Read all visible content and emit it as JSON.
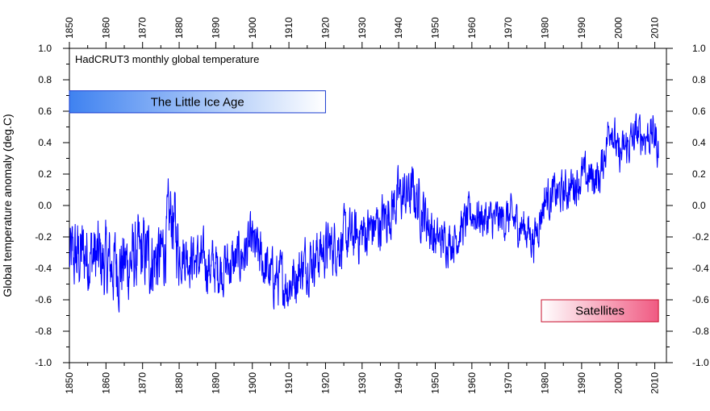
{
  "chart_data": {
    "type": "line",
    "title": "HadCRUT3 monthly global temperature",
    "ylabel": "Global temperature anomaly (deg.C)",
    "xlim": [
      1850,
      2012
    ],
    "ylim": [
      -1.0,
      1.0
    ],
    "x_ticks": [
      "1850",
      "1860",
      "1870",
      "1880",
      "1890",
      "1900",
      "1910",
      "1920",
      "1930",
      "1940",
      "1950",
      "1960",
      "1970",
      "1980",
      "1990",
      "2000",
      "2010"
    ],
    "y_ticks": [
      "1.0",
      "0.8",
      "0.6",
      "0.4",
      "0.2",
      "0.0",
      "-0.2",
      "-0.4",
      "-0.6",
      "-0.8",
      "-1.0"
    ],
    "y_tick_values": [
      1.0,
      0.8,
      0.6,
      0.4,
      0.2,
      0.0,
      -0.2,
      -0.4,
      -0.6,
      -0.8,
      -1.0
    ],
    "line_color": "#0000ff",
    "series_trend": {
      "x": [
        1850,
        1855,
        1860,
        1865,
        1870,
        1875,
        1878,
        1880,
        1885,
        1890,
        1895,
        1900,
        1905,
        1910,
        1915,
        1920,
        1925,
        1930,
        1935,
        1940,
        1944,
        1948,
        1950,
        1955,
        1960,
        1965,
        1970,
        1975,
        1977,
        1980,
        1985,
        1990,
        1995,
        1998,
        2000,
        2005,
        2010,
        2011
      ],
      "y": [
        -0.35,
        -0.3,
        -0.38,
        -0.38,
        -0.32,
        -0.35,
        -0.05,
        -0.28,
        -0.35,
        -0.4,
        -0.37,
        -0.25,
        -0.45,
        -0.5,
        -0.35,
        -0.28,
        -0.22,
        -0.18,
        -0.12,
        0.05,
        0.08,
        -0.1,
        -0.22,
        -0.22,
        -0.05,
        -0.1,
        -0.08,
        -0.15,
        -0.22,
        0.05,
        0.08,
        0.18,
        0.18,
        0.55,
        0.3,
        0.45,
        0.45,
        0.35
      ]
    },
    "annotations": [
      {
        "label": "The Little Ice Age",
        "x_start": 1850,
        "x_end": 1920,
        "y_top": 0.73,
        "y_bottom": 0.59,
        "color": "#3f82f0"
      },
      {
        "label": "Satellites",
        "x_start": 1979,
        "x_end": 2011,
        "y_top": -0.6,
        "y_bottom": -0.74,
        "color": "#f05a82"
      }
    ]
  }
}
